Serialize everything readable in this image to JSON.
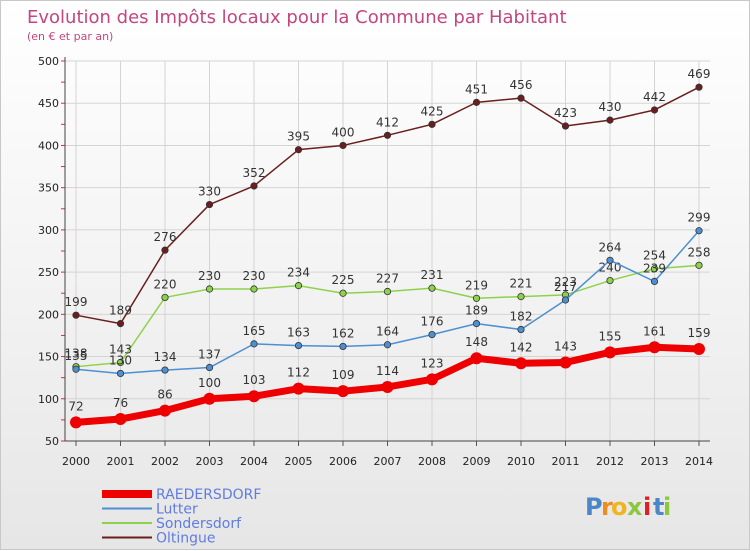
{
  "chart_data": {
    "type": "line",
    "title": "Evolution des Impôts locaux pour la Commune par Habitant",
    "subtitle": "(en € et par an)",
    "xlabel": "",
    "ylabel": "",
    "x": [
      "2000",
      "2001",
      "2002",
      "2003",
      "2004",
      "2005",
      "2006",
      "2007",
      "2008",
      "2009",
      "2010",
      "2011",
      "2012",
      "2013",
      "2014"
    ],
    "ylim": [
      50,
      500
    ],
    "yticks": [
      50,
      100,
      150,
      200,
      250,
      300,
      350,
      400,
      450,
      500
    ],
    "grid": true,
    "legend_position": "bottom-left",
    "series": [
      {
        "name": "Oltingue",
        "color": "#6b1e1e",
        "values": [
          199,
          189,
          276,
          330,
          352,
          395,
          400,
          412,
          425,
          451,
          456,
          423,
          430,
          442,
          469
        ]
      },
      {
        "name": "Sondersdorf",
        "color": "#8ed24c",
        "values": [
          138,
          143,
          220,
          230,
          230,
          234,
          225,
          227,
          231,
          219,
          221,
          223,
          240,
          254,
          258
        ]
      },
      {
        "name": "Lutter",
        "color": "#4e8fd1",
        "values": [
          135,
          130,
          134,
          137,
          165,
          163,
          162,
          164,
          176,
          189,
          182,
          217,
          264,
          239,
          299
        ]
      },
      {
        "name": "RAEDERSDORF",
        "color": "#ee0000",
        "values": [
          72,
          76,
          86,
          100,
          103,
          112,
          109,
          114,
          123,
          148,
          142,
          143,
          155,
          161,
          159
        ]
      }
    ],
    "legend": [
      "RAEDERSDORF",
      "Lutter",
      "Sondersdorf",
      "Oltingue"
    ]
  },
  "brand": {
    "letters": [
      "P",
      "r",
      "o",
      "x",
      "i",
      "t",
      "i"
    ],
    "colors": [
      "#4a86c8",
      "#f08c1e",
      "#f0b41e",
      "#8cc83c",
      "#e02020",
      "#4a86c8",
      "#8cc83c"
    ]
  }
}
